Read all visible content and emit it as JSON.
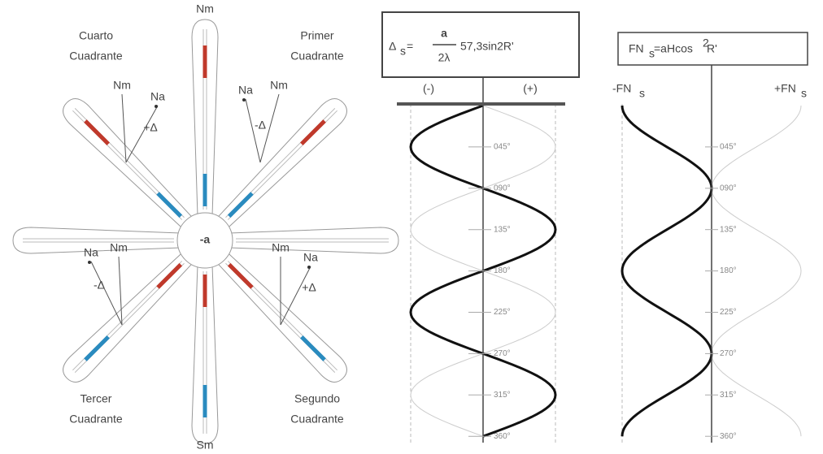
{
  "rosette": {
    "north": "Nm",
    "south": "Sm",
    "center": "-a",
    "quadrants": [
      {
        "title": [
          "Cuarto",
          "Cuadrante"
        ],
        "na": "Na",
        "nm": "Nm",
        "delta": "+Δ"
      },
      {
        "title": [
          "Primer",
          "Cuadrante"
        ],
        "na": "Na",
        "nm": "Nm",
        "delta": "-Δ"
      },
      {
        "title": [
          "Tercer",
          "Cuadrante"
        ],
        "na": "Na",
        "nm": "Nm",
        "delta": "-Δ"
      },
      {
        "title": [
          "Segundo",
          "Cuadrante"
        ],
        "na": "Na",
        "nm": "Nm",
        "delta": "+Δ"
      }
    ]
  },
  "deviation": {
    "formula": {
      "lhs": "Δ",
      "sub": "s",
      "eq": "=",
      "num": "a",
      "den": "2λ",
      "rest": "57,3sin2R'"
    },
    "left": "(-)",
    "right": "(+)",
    "ticks": [
      "045°",
      "090°",
      "135°",
      "180°",
      "225°",
      "270°",
      "315°",
      "360°"
    ]
  },
  "force": {
    "formula": {
      "lhs": "FN",
      "sub": "s",
      "rest": "=aHcos",
      "sup": "2",
      "tail": "R'"
    },
    "left": "-FN",
    "left_sub": "s",
    "right": "+FN",
    "right_sub": "s",
    "ticks": [
      "045°",
      "090°",
      "135°",
      "180°",
      "225°",
      "270°",
      "315°",
      "360°"
    ]
  }
}
